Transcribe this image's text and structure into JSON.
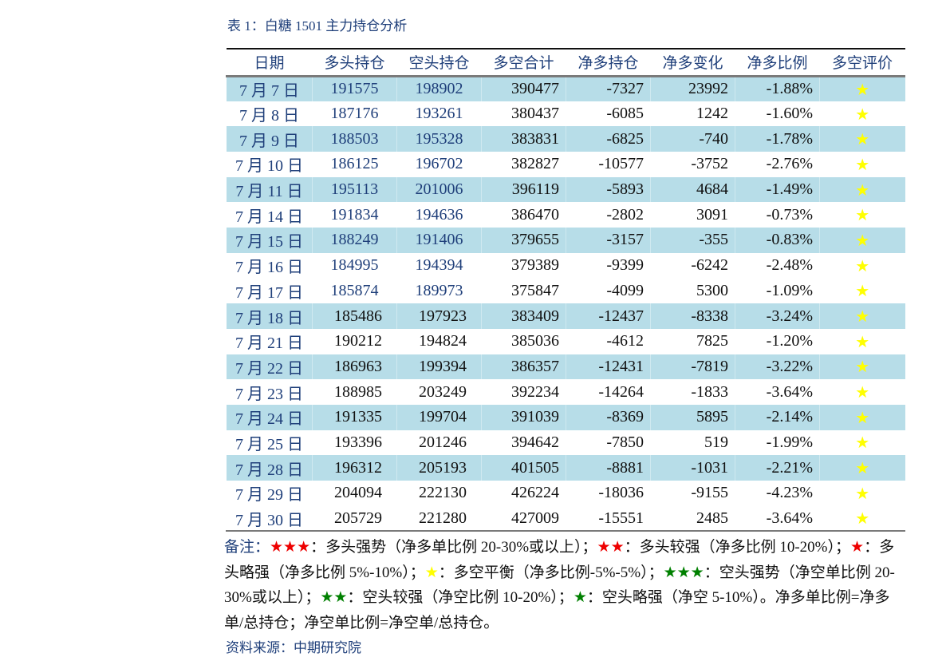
{
  "caption": "表 1：白糖 1501 主力持仓分析",
  "table": {
    "headers": [
      "日期",
      "多头持仓",
      "空头持仓",
      "多空合计",
      "净多持仓",
      "净多变化",
      "净多比例",
      "多空评价"
    ],
    "rows": [
      {
        "date": "7 月 7 日",
        "long": "191575",
        "short": "198902",
        "total": "390477",
        "net": "-7327",
        "change": "23992",
        "ratio": "-1.88%",
        "rating": "★",
        "shade": true,
        "blue": true
      },
      {
        "date": "7 月 8 日",
        "long": "187176",
        "short": "193261",
        "total": "380437",
        "net": "-6085",
        "change": "1242",
        "ratio": "-1.60%",
        "rating": "★",
        "shade": false,
        "blue": true
      },
      {
        "date": "7 月 9 日",
        "long": "188503",
        "short": "195328",
        "total": "383831",
        "net": "-6825",
        "change": "-740",
        "ratio": "-1.78%",
        "rating": "★",
        "shade": true,
        "blue": true
      },
      {
        "date": "7 月 10 日",
        "long": "186125",
        "short": "196702",
        "total": "382827",
        "net": "-10577",
        "change": "-3752",
        "ratio": "-2.76%",
        "rating": "★",
        "shade": false,
        "blue": true
      },
      {
        "date": "7 月 11 日",
        "long": "195113",
        "short": "201006",
        "total": "396119",
        "net": "-5893",
        "change": "4684",
        "ratio": "-1.49%",
        "rating": "★",
        "shade": true,
        "blue": true
      },
      {
        "date": "7 月 14 日",
        "long": "191834",
        "short": "194636",
        "total": "386470",
        "net": "-2802",
        "change": "3091",
        "ratio": "-0.73%",
        "rating": "★",
        "shade": false,
        "blue": true
      },
      {
        "date": "7 月 15 日",
        "long": "188249",
        "short": "191406",
        "total": "379655",
        "net": "-3157",
        "change": "-355",
        "ratio": "-0.83%",
        "rating": "★",
        "shade": true,
        "blue": true
      },
      {
        "date": "7 月 16 日",
        "long": "184995",
        "short": "194394",
        "total": "379389",
        "net": "-9399",
        "change": "-6242",
        "ratio": "-2.48%",
        "rating": "★",
        "shade": false,
        "blue": true
      },
      {
        "date": "7 月 17 日",
        "long": "185874",
        "short": "189973",
        "total": "375847",
        "net": "-4099",
        "change": "5300",
        "ratio": "-1.09%",
        "rating": "★",
        "shade": false,
        "blue": true
      },
      {
        "date": "7 月 18 日",
        "long": "185486",
        "short": "197923",
        "total": "383409",
        "net": "-12437",
        "change": "-8338",
        "ratio": "-3.24%",
        "rating": "★",
        "shade": true,
        "blue": false
      },
      {
        "date": "7 月 21 日",
        "long": "190212",
        "short": "194824",
        "total": "385036",
        "net": "-4612",
        "change": "7825",
        "ratio": "-1.20%",
        "rating": "★",
        "shade": false,
        "blue": false
      },
      {
        "date": "7 月 22 日",
        "long": "186963",
        "short": "199394",
        "total": "386357",
        "net": "-12431",
        "change": "-7819",
        "ratio": "-3.22%",
        "rating": "★",
        "shade": true,
        "blue": false
      },
      {
        "date": "7 月 23 日",
        "long": "188985",
        "short": "203249",
        "total": "392234",
        "net": "-14264",
        "change": "-1833",
        "ratio": "-3.64%",
        "rating": "★",
        "shade": false,
        "blue": false
      },
      {
        "date": "7 月 24 日",
        "long": "191335",
        "short": "199704",
        "total": "391039",
        "net": "-8369",
        "change": "5895",
        "ratio": "-2.14%",
        "rating": "★",
        "shade": true,
        "blue": false
      },
      {
        "date": "7 月 25 日",
        "long": "193396",
        "short": "201246",
        "total": "394642",
        "net": "-7850",
        "change": "519",
        "ratio": "-1.99%",
        "rating": "★",
        "shade": false,
        "blue": false
      },
      {
        "date": "7 月 28 日",
        "long": "196312",
        "short": "205193",
        "total": "401505",
        "net": "-8881",
        "change": "-1031",
        "ratio": "-2.21%",
        "rating": "★",
        "shade": true,
        "blue": false
      },
      {
        "date": "7 月 29 日",
        "long": "204094",
        "short": "222130",
        "total": "426224",
        "net": "-18036",
        "change": "-9155",
        "ratio": "-4.23%",
        "rating": "★",
        "shade": false,
        "blue": false
      },
      {
        "date": "7 月 30 日",
        "long": "205729",
        "short": "221280",
        "total": "427009",
        "net": "-15551",
        "change": "2485",
        "ratio": "-3.64%",
        "rating": "★",
        "shade": false,
        "blue": false
      }
    ]
  },
  "notes": {
    "lead": "备注：",
    "segments": [
      {
        "star": "★★★",
        "color": "red",
        "text": "：多头强势（净多单比例 20-30%或以上）；"
      },
      {
        "star": "★★",
        "color": "red",
        "text": "：多头较强（净多比例 10-20%）；"
      },
      {
        "star": "★",
        "color": "red",
        "text": "：多头略强（净多比例 5%-10%）；"
      },
      {
        "star": "★",
        "color": "yellow",
        "text": "：多空平衡（净多比例-5%-5%）；"
      },
      {
        "star": "★★★",
        "color": "green",
        "text": "：空头强势（净空单比例 20-30%或以上）；"
      },
      {
        "star": "★★",
        "color": "green",
        "text": "：空头较强（净空比例 10-20%）；"
      },
      {
        "star": "★",
        "color": "green",
        "text": "：空头略强（净空 5-10%）。净多单比例=净多单/总持仓；净空单比例=净空单/总持仓。"
      }
    ]
  },
  "source": "资料来源：中期研究院"
}
